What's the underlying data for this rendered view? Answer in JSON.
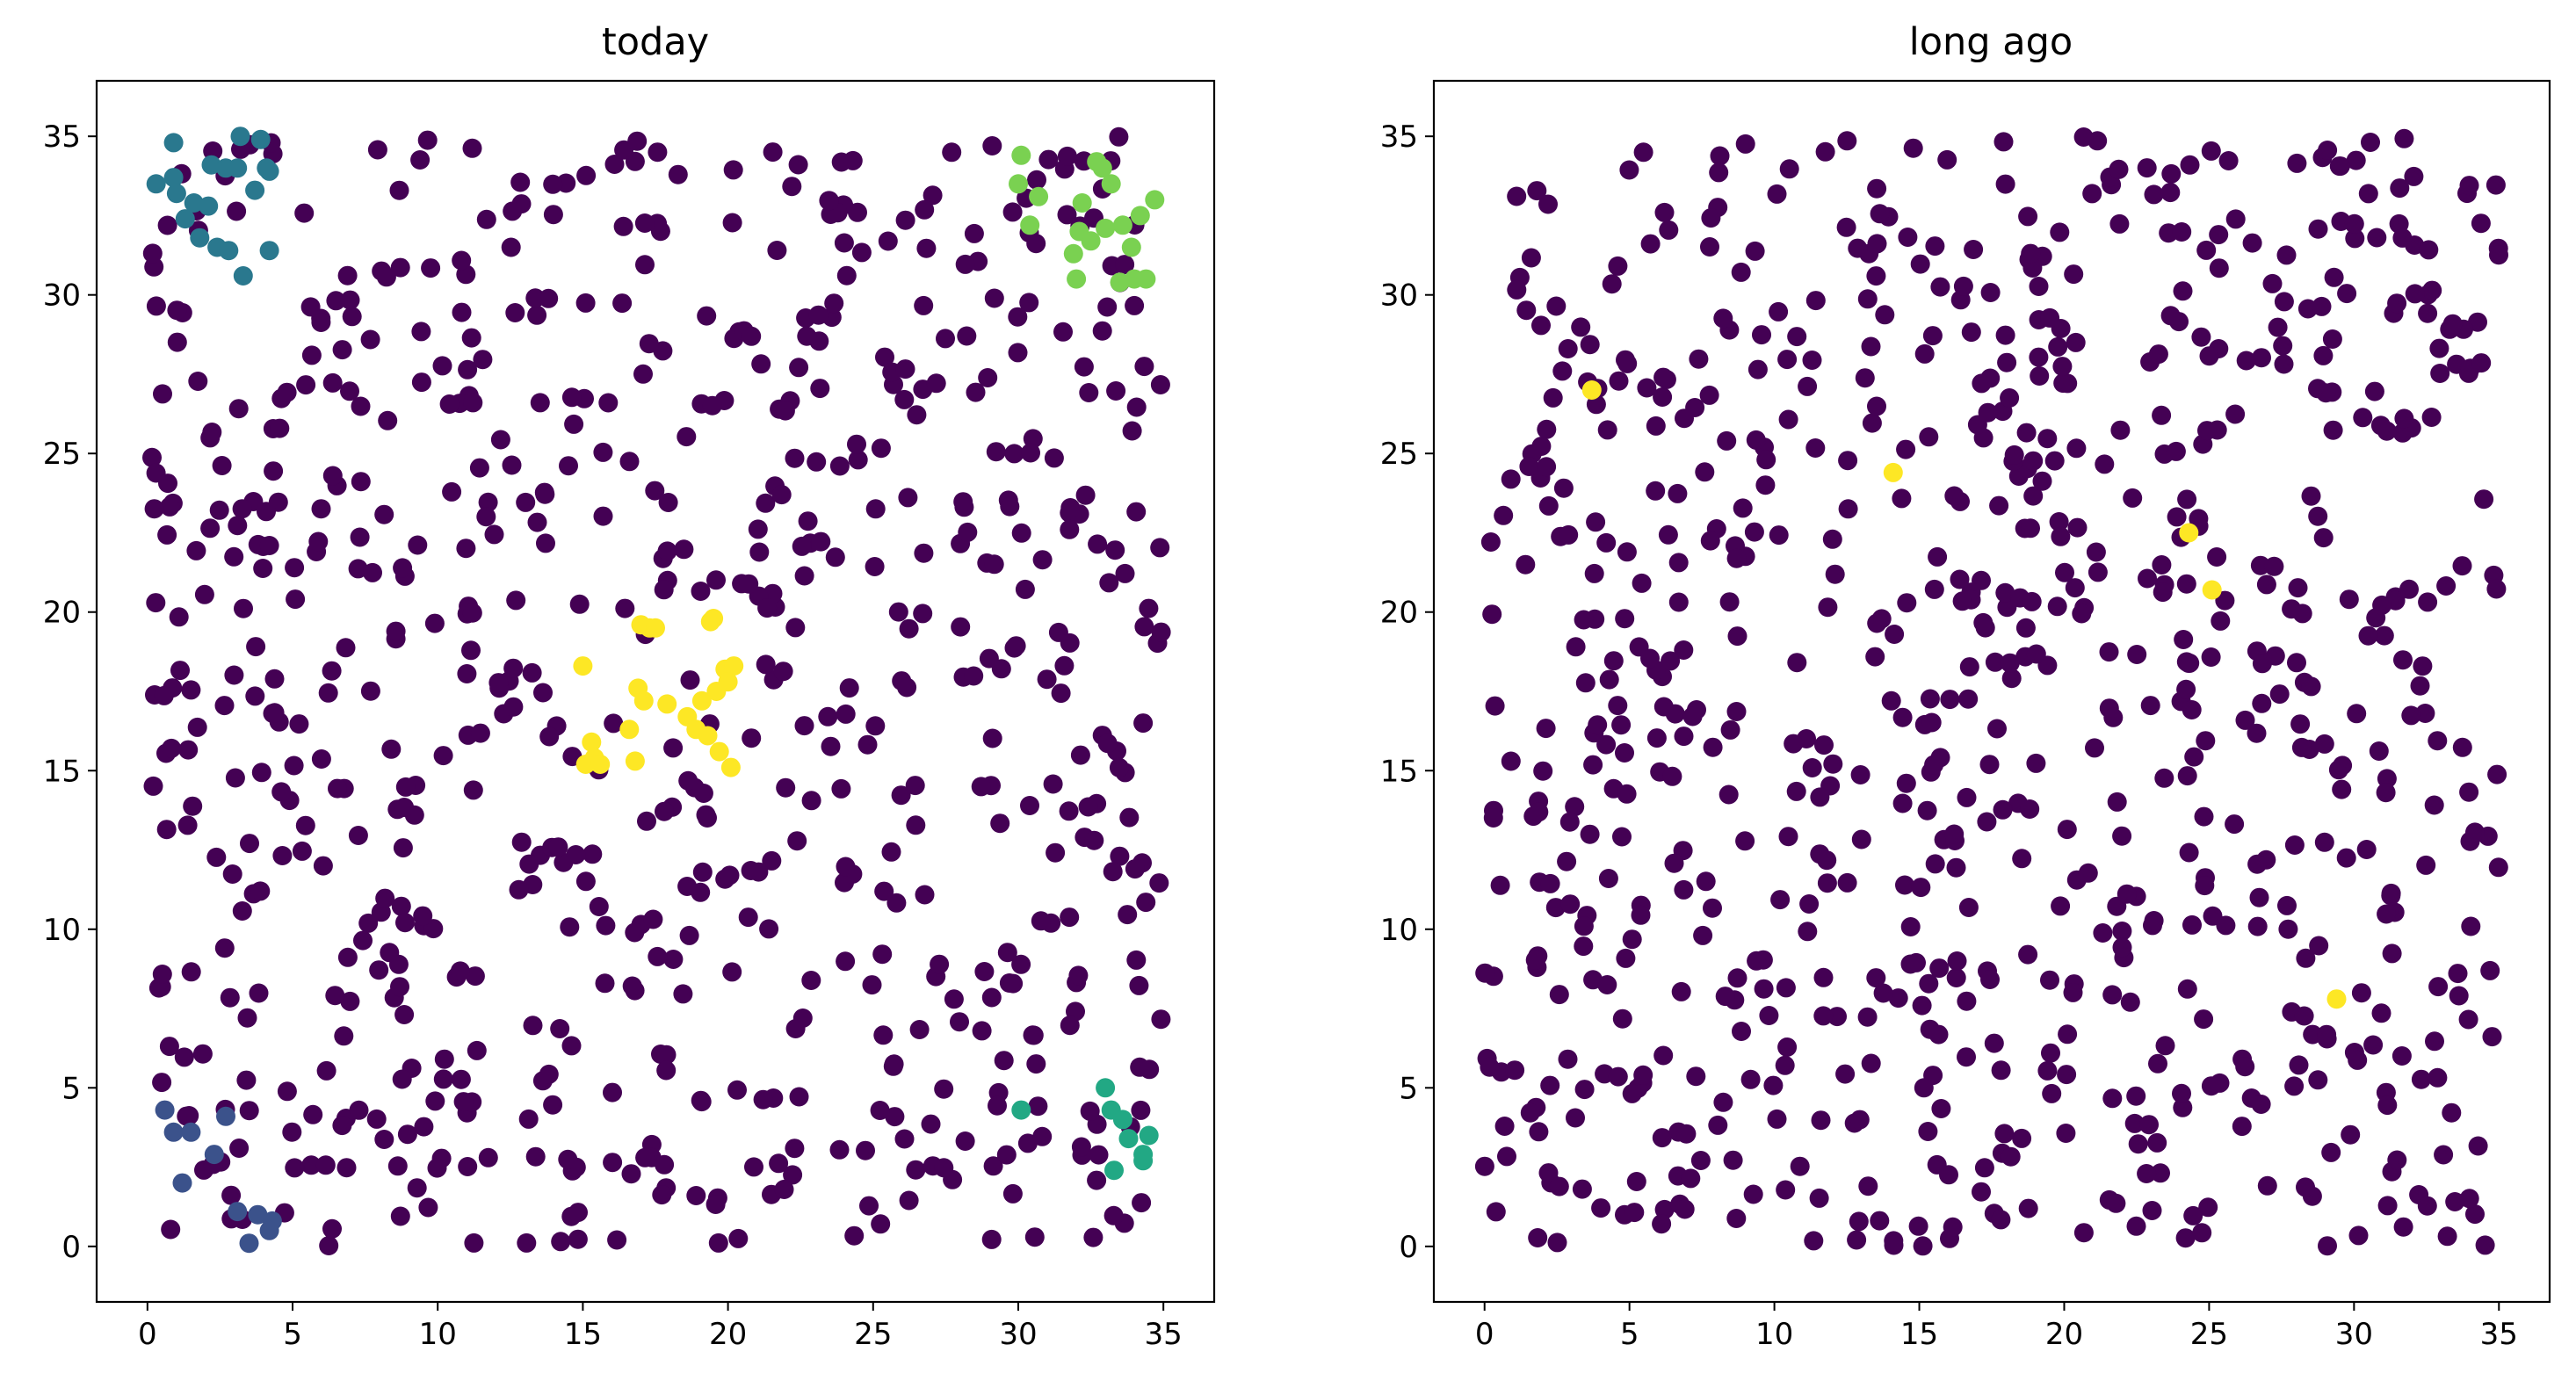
{
  "figure": {
    "color_scale": [
      "#440154",
      "#3b528b",
      "#21908d",
      "#5dc863",
      "#fde725"
    ]
  },
  "chart_data": [
    {
      "type": "scatter",
      "title": "today",
      "xlim": [
        -1.75,
        36.75
      ],
      "ylim": [
        -1.75,
        36.75
      ],
      "xticks": [
        0,
        5,
        10,
        15,
        20,
        25,
        30,
        35
      ],
      "yticks": [
        0,
        5,
        10,
        15,
        20,
        25,
        30,
        35
      ],
      "grid": false,
      "background_seed": 1234,
      "background_count": 720,
      "background_color": "#440154",
      "clusters": [
        {
          "color": "#2a788e",
          "points": [
            [
              0.9,
              34.8
            ],
            [
              0.3,
              33.5
            ],
            [
              0.9,
              33.7
            ],
            [
              1.0,
              33.2
            ],
            [
              1.3,
              32.4
            ],
            [
              1.6,
              32.9
            ],
            [
              1.8,
              31.8
            ],
            [
              2.1,
              32.8
            ],
            [
              2.4,
              31.5
            ],
            [
              2.2,
              34.1
            ],
            [
              2.7,
              34.0
            ],
            [
              2.8,
              31.4
            ],
            [
              3.1,
              34.0
            ],
            [
              3.2,
              35.0
            ],
            [
              3.3,
              30.6
            ],
            [
              3.9,
              34.9
            ],
            [
              4.1,
              34.0
            ],
            [
              4.2,
              33.9
            ],
            [
              4.2,
              31.4
            ],
            [
              3.7,
              33.3
            ]
          ]
        },
        {
          "color": "#3b528b",
          "points": [
            [
              0.6,
              4.3
            ],
            [
              0.9,
              3.6
            ],
            [
              1.2,
              2.0
            ],
            [
              1.5,
              3.6
            ],
            [
              2.3,
              2.9
            ],
            [
              2.7,
              4.1
            ],
            [
              3.1,
              1.1
            ],
            [
              3.5,
              0.1
            ],
            [
              3.8,
              1.0
            ],
            [
              4.3,
              0.8
            ],
            [
              4.2,
              0.5
            ]
          ]
        },
        {
          "color": "#22a884",
          "points": [
            [
              30.1,
              4.3
            ],
            [
              33.0,
              5.0
            ],
            [
              33.2,
              4.3
            ],
            [
              33.3,
              2.4
            ],
            [
              33.6,
              4.0
            ],
            [
              33.8,
              3.4
            ],
            [
              34.3,
              2.9
            ],
            [
              34.3,
              2.7
            ],
            [
              34.5,
              3.5
            ]
          ]
        },
        {
          "color": "#7ad151",
          "points": [
            [
              30.1,
              34.4
            ],
            [
              30.0,
              33.5
            ],
            [
              30.4,
              32.2
            ],
            [
              30.7,
              33.1
            ],
            [
              32.1,
              32.0
            ],
            [
              32.0,
              30.5
            ],
            [
              32.5,
              31.7
            ],
            [
              32.7,
              34.2
            ],
            [
              32.9,
              34.0
            ],
            [
              33.2,
              33.5
            ],
            [
              33.6,
              32.2
            ],
            [
              33.9,
              31.5
            ],
            [
              34.0,
              30.5
            ],
            [
              34.2,
              32.5
            ],
            [
              34.4,
              30.5
            ],
            [
              34.7,
              33.0
            ],
            [
              33.5,
              30.4
            ],
            [
              33.0,
              32.1
            ],
            [
              32.2,
              32.9
            ],
            [
              31.9,
              31.3
            ]
          ]
        },
        {
          "color": "#fde725",
          "points": [
            [
              15.0,
              18.3
            ],
            [
              15.1,
              15.2
            ],
            [
              15.3,
              15.9
            ],
            [
              15.4,
              15.4
            ],
            [
              15.6,
              15.2
            ],
            [
              16.6,
              16.3
            ],
            [
              16.8,
              15.3
            ],
            [
              16.9,
              17.6
            ],
            [
              17.0,
              19.6
            ],
            [
              17.1,
              17.2
            ],
            [
              17.3,
              19.5
            ],
            [
              17.5,
              19.5
            ],
            [
              17.9,
              17.1
            ],
            [
              18.6,
              16.7
            ],
            [
              18.9,
              16.3
            ],
            [
              19.1,
              17.2
            ],
            [
              19.3,
              16.1
            ],
            [
              19.5,
              19.8
            ],
            [
              19.6,
              17.5
            ],
            [
              19.7,
              15.6
            ],
            [
              19.9,
              18.2
            ],
            [
              20.1,
              15.1
            ],
            [
              20.2,
              18.3
            ],
            [
              20.0,
              17.8
            ],
            [
              19.4,
              19.7
            ]
          ]
        }
      ]
    },
    {
      "type": "scatter",
      "title": "long ago",
      "xlim": [
        -1.75,
        36.75
      ],
      "ylim": [
        -1.75,
        36.75
      ],
      "xticks": [
        0,
        5,
        10,
        15,
        20,
        25,
        30,
        35
      ],
      "yticks": [
        0,
        5,
        10,
        15,
        20,
        25,
        30,
        35
      ],
      "grid": false,
      "background_seed": 98765,
      "background_count": 790,
      "background_color": "#440154",
      "clusters": [
        {
          "color": "#fde725",
          "points": [
            [
              3.7,
              27.0
            ],
            [
              24.3,
              22.5
            ],
            [
              25.1,
              20.7
            ],
            [
              29.4,
              7.8
            ],
            [
              14.1,
              24.4
            ]
          ]
        }
      ]
    }
  ]
}
